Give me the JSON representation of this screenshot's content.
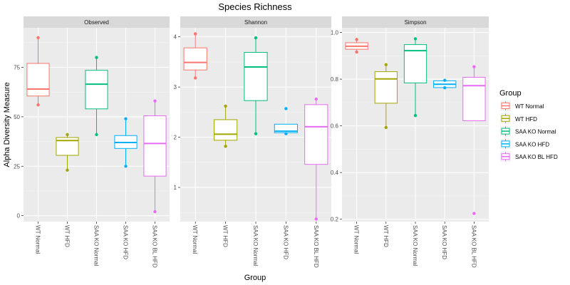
{
  "chart_data": {
    "type": "boxplot",
    "title": "Species Richness",
    "xlabel": "Group",
    "ylabel": "Alpha Diversity Measure",
    "categories": [
      "WT Normal",
      "WT HFD",
      "SAA KO Normal",
      "SAA KO HFD",
      "SAA KO BL HFD"
    ],
    "colors": [
      "#F8766D",
      "#A3A500",
      "#00BF7D",
      "#00B0F6",
      "#E76BF3"
    ],
    "legend": {
      "title": "Group",
      "position": "right",
      "entries": [
        "WT Normal",
        "WT HFD",
        "SAA KO Normal",
        "SAA KO HFD",
        "SAA KO BL HFD"
      ]
    },
    "facets": [
      {
        "name": "Observed",
        "ylim": [
          -3,
          95
        ],
        "yticks": [
          0,
          25,
          50,
          75
        ],
        "boxes": [
          {
            "group": "WT Normal",
            "min": 56,
            "q1": 60.5,
            "median": 64,
            "q3": 77,
            "max": 90,
            "points": [
              56,
              90
            ]
          },
          {
            "group": "WT HFD",
            "min": 23,
            "q1": 30.5,
            "median": 38,
            "q3": 39.5,
            "max": 41,
            "points": [
              23,
              41
            ]
          },
          {
            "group": "SAA KO Normal",
            "min": 41,
            "q1": 54,
            "median": 66.5,
            "q3": 73.5,
            "max": 80,
            "points": [
              41,
              80
            ]
          },
          {
            "group": "SAA KO HFD",
            "min": 25,
            "q1": 34,
            "median": 37,
            "q3": 40.5,
            "max": 49,
            "points": [
              25,
              49
            ]
          },
          {
            "group": "SAA KO BL HFD",
            "min": 2,
            "q1": 20,
            "median": 36.5,
            "q3": 50.5,
            "max": 58,
            "points": [
              2,
              58
            ]
          }
        ]
      },
      {
        "name": "Shannon",
        "ylim": [
          0.32,
          4.18
        ],
        "yticks": [
          1,
          2,
          3,
          4
        ],
        "boxes": [
          {
            "group": "WT Normal",
            "min": 3.18,
            "q1": 3.34,
            "median": 3.49,
            "q3": 3.78,
            "max": 4.06,
            "points": [
              3.18,
              4.06
            ]
          },
          {
            "group": "WT HFD",
            "min": 1.82,
            "q1": 1.94,
            "median": 2.06,
            "q3": 2.35,
            "max": 2.62,
            "points": [
              1.82,
              2.62
            ]
          },
          {
            "group": "SAA KO Normal",
            "min": 2.07,
            "q1": 2.73,
            "median": 3.4,
            "q3": 3.69,
            "max": 3.98,
            "points": [
              2.07,
              3.98
            ]
          },
          {
            "group": "SAA KO HFD",
            "min": 2.07,
            "q1": 2.09,
            "median": 2.12,
            "q3": 2.26,
            "max": 2.26,
            "points": [
              2.07,
              2.57
            ]
          },
          {
            "group": "SAA KO BL HFD",
            "min": 0.37,
            "q1": 1.46,
            "median": 2.21,
            "q3": 2.65,
            "max": 2.76,
            "points": [
              0.37,
              2.76
            ]
          }
        ]
      },
      {
        "name": "Simpson",
        "ylim": [
          0.19,
          1.02
        ],
        "yticks": [
          0.2,
          0.4,
          0.6,
          0.8,
          1.0
        ],
        "ytick_labels": [
          "0.2",
          "0.4",
          "0.6",
          "0.8",
          "1.0"
        ],
        "boxes": [
          {
            "group": "WT Normal",
            "min": 0.916,
            "q1": 0.928,
            "median": 0.941,
            "q3": 0.956,
            "max": 0.97,
            "points": [
              0.916,
              0.97
            ]
          },
          {
            "group": "WT HFD",
            "min": 0.593,
            "q1": 0.697,
            "median": 0.801,
            "q3": 0.832,
            "max": 0.862,
            "points": [
              0.593,
              0.862
            ]
          },
          {
            "group": "SAA KO Normal",
            "min": 0.644,
            "q1": 0.784,
            "median": 0.922,
            "q3": 0.948,
            "max": 0.973,
            "points": [
              0.644,
              0.973
            ]
          },
          {
            "group": "SAA KO HFD",
            "min": 0.763,
            "q1": 0.764,
            "median": 0.778,
            "q3": 0.793,
            "max": 0.795,
            "points": [
              0.763,
              0.795
            ]
          },
          {
            "group": "SAA KO BL HFD",
            "min": 0.622,
            "q1": 0.622,
            "median": 0.772,
            "q3": 0.808,
            "max": 0.853,
            "points": [
              0.225,
              0.853
            ]
          }
        ]
      }
    ]
  }
}
